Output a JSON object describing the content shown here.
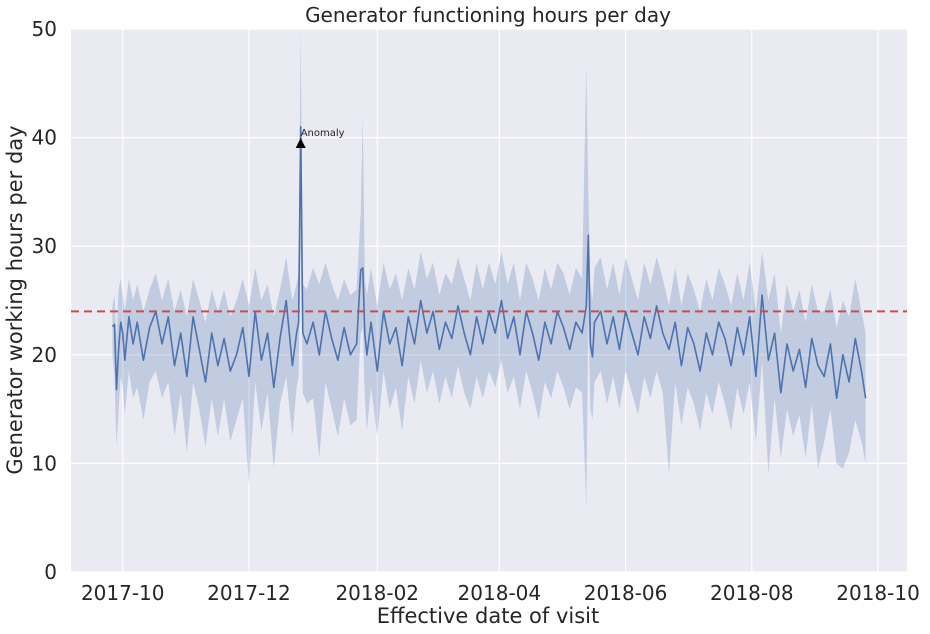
{
  "chart_data": {
    "type": "line",
    "title": "Generator functioning hours per day",
    "xlabel": "Effective  date of visit",
    "ylabel": "Generator working hours per day",
    "xlim": [
      "2017-09-06",
      "2018-10-15"
    ],
    "ylim": [
      0,
      50
    ],
    "x_ticks": [
      "2017-10-01",
      "2017-12-01",
      "2018-02-01",
      "2018-04-01",
      "2018-06-01",
      "2018-08-01",
      "2018-10-01"
    ],
    "x_tick_labels": [
      "2017-10",
      "2017-12",
      "2018-02",
      "2018-04",
      "2018-06",
      "2018-08",
      "2018-10"
    ],
    "y_ticks": [
      0,
      10,
      20,
      30,
      40,
      50
    ],
    "grid": true,
    "reference_line": {
      "y": 24,
      "style": "dashed",
      "color": "#c44e52"
    },
    "annotation": {
      "text": "Anomaly",
      "x": "2017-12-26",
      "y": 39.5
    },
    "series": [
      {
        "color": "#4c72b0",
        "band_color": "#4c72b0",
        "x": [
          "2017-09-26",
          "2017-09-27",
          "2017-09-28",
          "2017-09-29",
          "2017-09-30",
          "2017-10-01",
          "2017-10-02",
          "2017-10-04",
          "2017-10-06",
          "2017-10-08",
          "2017-10-11",
          "2017-10-14",
          "2017-10-17",
          "2017-10-20",
          "2017-10-23",
          "2017-10-26",
          "2017-10-29",
          "2017-11-01",
          "2017-11-04",
          "2017-11-07",
          "2017-11-10",
          "2017-11-13",
          "2017-11-16",
          "2017-11-19",
          "2017-11-22",
          "2017-11-25",
          "2017-11-28",
          "2017-12-01",
          "2017-12-04",
          "2017-12-07",
          "2017-12-10",
          "2017-12-13",
          "2017-12-16",
          "2017-12-19",
          "2017-12-22",
          "2017-12-24",
          "2017-12-25",
          "2017-12-26",
          "2017-12-27",
          "2017-12-29",
          "2018-01-01",
          "2018-01-04",
          "2018-01-07",
          "2018-01-10",
          "2018-01-13",
          "2018-01-16",
          "2018-01-19",
          "2018-01-22",
          "2018-01-24",
          "2018-01-25",
          "2018-01-26",
          "2018-01-27",
          "2018-01-29",
          "2018-02-01",
          "2018-02-04",
          "2018-02-07",
          "2018-02-10",
          "2018-02-13",
          "2018-02-16",
          "2018-02-19",
          "2018-02-22",
          "2018-02-25",
          "2018-02-28",
          "2018-03-03",
          "2018-03-06",
          "2018-03-09",
          "2018-03-12",
          "2018-03-15",
          "2018-03-18",
          "2018-03-21",
          "2018-03-24",
          "2018-03-27",
          "2018-03-30",
          "2018-04-02",
          "2018-04-05",
          "2018-04-08",
          "2018-04-11",
          "2018-04-14",
          "2018-04-17",
          "2018-04-20",
          "2018-04-23",
          "2018-04-26",
          "2018-04-29",
          "2018-05-02",
          "2018-05-05",
          "2018-05-08",
          "2018-05-11",
          "2018-05-13",
          "2018-05-14",
          "2018-05-15",
          "2018-05-16",
          "2018-05-17",
          "2018-05-20",
          "2018-05-23",
          "2018-05-26",
          "2018-05-29",
          "2018-06-01",
          "2018-06-04",
          "2018-06-07",
          "2018-06-10",
          "2018-06-13",
          "2018-06-16",
          "2018-06-19",
          "2018-06-22",
          "2018-06-25",
          "2018-06-28",
          "2018-07-01",
          "2018-07-04",
          "2018-07-07",
          "2018-07-10",
          "2018-07-13",
          "2018-07-16",
          "2018-07-19",
          "2018-07-22",
          "2018-07-25",
          "2018-07-28",
          "2018-07-31",
          "2018-08-03",
          "2018-08-06",
          "2018-08-09",
          "2018-08-12",
          "2018-08-15",
          "2018-08-18",
          "2018-08-21",
          "2018-08-24",
          "2018-08-27",
          "2018-08-30",
          "2018-09-02",
          "2018-09-05",
          "2018-09-08",
          "2018-09-11",
          "2018-09-14",
          "2018-09-17",
          "2018-09-20",
          "2018-09-23",
          "2018-09-25"
        ],
        "y": [
          22.6,
          22.8,
          16.8,
          20.5,
          23.0,
          22.0,
          19.5,
          23.5,
          21.0,
          23.0,
          19.5,
          22.5,
          24.0,
          21.0,
          23.5,
          19.0,
          22.0,
          18.0,
          23.5,
          20.5,
          17.5,
          22.0,
          19.0,
          21.5,
          18.5,
          20.0,
          22.5,
          18.0,
          24.0,
          19.5,
          22.0,
          17.0,
          21.5,
          25.0,
          19.0,
          22.0,
          23.0,
          41.0,
          22.0,
          21.0,
          23.0,
          20.0,
          24.0,
          21.5,
          19.5,
          22.5,
          20.0,
          21.0,
          27.8,
          28.0,
          22.0,
          20.0,
          23.0,
          18.5,
          24.0,
          21.0,
          22.5,
          19.0,
          23.5,
          21.0,
          25.0,
          22.0,
          24.0,
          20.5,
          23.0,
          21.5,
          24.5,
          22.0,
          20.0,
          23.5,
          21.0,
          24.0,
          22.0,
          25.0,
          21.5,
          23.5,
          20.0,
          24.0,
          22.0,
          19.5,
          23.0,
          21.0,
          24.0,
          22.5,
          20.5,
          23.0,
          22.0,
          24.5,
          31.0,
          21.0,
          19.8,
          23.0,
          24.0,
          21.0,
          23.5,
          20.5,
          24.0,
          22.0,
          20.0,
          23.5,
          21.5,
          24.5,
          22.0,
          20.5,
          23.0,
          19.0,
          22.5,
          21.0,
          18.5,
          22.0,
          20.0,
          23.0,
          21.5,
          19.0,
          22.5,
          20.0,
          23.5,
          18.0,
          25.5,
          19.5,
          22.0,
          16.5,
          21.0,
          18.5,
          20.5,
          17.0,
          21.5,
          19.0,
          18.0,
          21.0,
          16.0,
          20.0,
          17.5,
          21.5,
          18.5,
          16.0
        ],
        "lower": [
          20.0,
          18.0,
          11.5,
          15.0,
          18.0,
          17.0,
          14.5,
          18.5,
          16.0,
          17.0,
          14.0,
          17.5,
          18.5,
          16.0,
          17.5,
          12.5,
          16.5,
          11.0,
          17.5,
          15.0,
          11.5,
          16.0,
          12.5,
          16.0,
          12.0,
          14.0,
          16.0,
          8.0,
          17.5,
          13.0,
          16.5,
          9.5,
          15.5,
          18.0,
          12.5,
          17.0,
          18.0,
          30.0,
          16.5,
          15.5,
          16.0,
          10.5,
          17.5,
          15.0,
          12.5,
          16.0,
          13.5,
          14.0,
          22.0,
          22.5,
          16.0,
          13.0,
          17.0,
          12.5,
          18.5,
          15.0,
          17.0,
          13.0,
          18.0,
          15.5,
          19.5,
          16.5,
          18.5,
          15.5,
          18.0,
          16.0,
          19.0,
          16.5,
          15.0,
          18.0,
          16.0,
          18.5,
          17.0,
          19.5,
          16.5,
          18.0,
          15.0,
          18.5,
          16.5,
          14.0,
          17.5,
          16.0,
          18.5,
          17.0,
          15.0,
          17.0,
          16.5,
          6.0,
          23.5,
          15.0,
          14.0,
          17.5,
          18.5,
          15.5,
          18.0,
          15.0,
          18.5,
          16.5,
          14.5,
          18.0,
          16.0,
          18.5,
          16.5,
          9.0,
          17.5,
          13.5,
          17.0,
          15.5,
          13.0,
          16.5,
          14.5,
          17.5,
          15.5,
          13.0,
          17.0,
          14.5,
          17.5,
          12.0,
          19.5,
          9.0,
          16.0,
          10.5,
          15.0,
          12.5,
          14.5,
          10.5,
          15.5,
          9.5,
          12.0,
          15.0,
          10.0,
          9.5,
          11.0,
          14.0,
          12.0,
          10.0
        ],
        "upper": [
          24.5,
          25.5,
          21.5,
          26.0,
          27.0,
          25.5,
          24.0,
          27.0,
          25.0,
          26.5,
          24.0,
          26.0,
          27.5,
          25.0,
          27.0,
          24.0,
          26.0,
          23.5,
          27.0,
          25.0,
          23.0,
          26.0,
          24.0,
          26.0,
          23.5,
          25.0,
          27.0,
          24.5,
          28.0,
          25.0,
          26.5,
          23.5,
          26.0,
          29.0,
          25.0,
          26.5,
          27.5,
          50.0,
          26.5,
          26.0,
          28.0,
          26.5,
          28.5,
          26.5,
          25.0,
          27.0,
          25.5,
          26.0,
          33.0,
          42.0,
          27.0,
          25.5,
          28.0,
          24.5,
          28.5,
          26.0,
          27.5,
          25.0,
          28.0,
          26.0,
          29.5,
          27.0,
          28.5,
          25.5,
          27.5,
          26.5,
          29.0,
          27.0,
          25.0,
          28.5,
          26.0,
          28.5,
          26.5,
          29.5,
          26.5,
          28.5,
          25.0,
          28.5,
          27.0,
          25.0,
          28.0,
          26.0,
          28.5,
          27.5,
          25.5,
          28.0,
          27.0,
          46.5,
          35.0,
          26.5,
          25.0,
          28.0,
          29.0,
          26.0,
          28.5,
          25.5,
          29.0,
          27.0,
          25.0,
          28.5,
          26.5,
          29.0,
          27.0,
          24.5,
          28.0,
          24.5,
          27.5,
          26.0,
          24.0,
          27.0,
          25.0,
          28.0,
          26.5,
          24.5,
          27.5,
          25.0,
          28.5,
          24.0,
          29.5,
          25.0,
          27.5,
          22.0,
          26.5,
          24.0,
          26.0,
          23.0,
          26.5,
          24.0,
          24.0,
          26.0,
          22.5,
          25.0,
          23.5,
          27.0,
          24.0,
          22.0
        ]
      }
    ]
  }
}
